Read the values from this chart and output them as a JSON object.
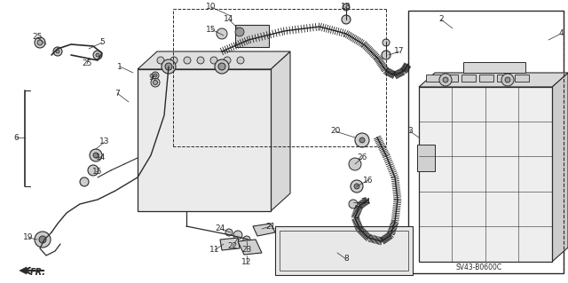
{
  "bg_color": "#ffffff",
  "line_color": "#2a2a2a",
  "diagram_code": "SV43-B0600C",
  "fig_w": 6.4,
  "fig_h": 3.19,
  "dpi": 100,
  "xlim": [
    0,
    640
  ],
  "ylim": [
    0,
    319
  ]
}
